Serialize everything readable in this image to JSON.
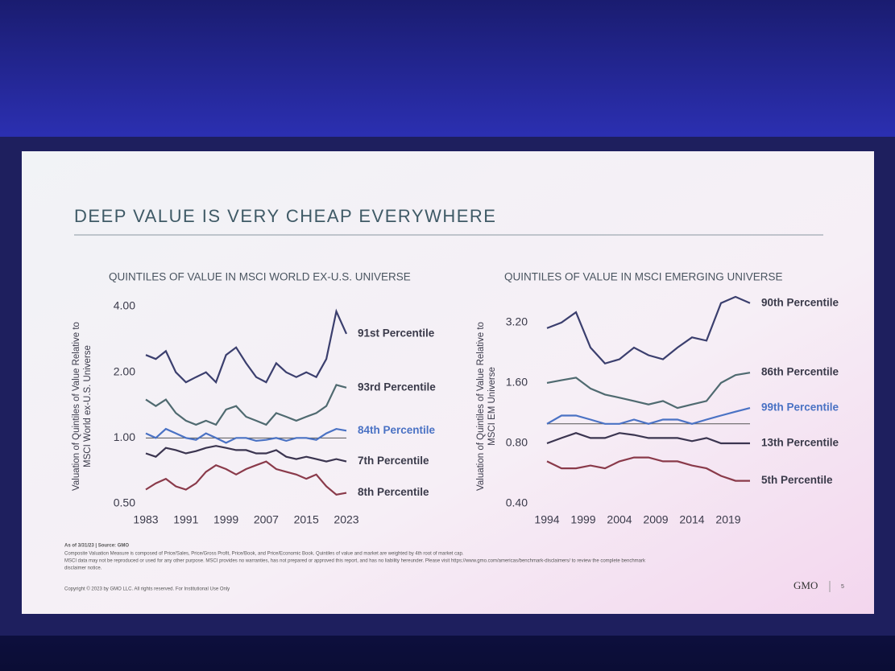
{
  "slide": {
    "title": "DEEP VALUE IS VERY CHEAP EVERYWHERE",
    "footnotes": [
      "As of 3/31/23 | Source: GMO",
      "Composite Valuation Measure is composed of Price/Sales, Price/Gross Profit, Price/Book, and Price/Economic Book. Quintiles of value and market are weighted by 4th root of market cap.",
      "MSCI data may not be reproduced or used for any other purpose. MSCI provides no warranties, has not prepared or approved this report, and has no liability hereunder. Please visit https://www.gmo.com/americas/benchmark-disclaimers/ to review the complete benchmark",
      "disclaimer notice."
    ],
    "copyright": "Copyright © 2023 by GMO LLC. All rights reserved. For Institutional Use Only",
    "logo": "GMO",
    "page": "5"
  },
  "chart_data": [
    {
      "type": "line",
      "title": "QUINTILES OF VALUE IN MSCI WORLD EX-U.S. UNIVERSE",
      "ylabel": [
        "Valuation of Quintiles of Value Relative to",
        "MSCI World ex-U.S. Universe"
      ],
      "log_y": true,
      "hline": 1,
      "x": [
        1983,
        1985,
        1987,
        1989,
        1991,
        1993,
        1995,
        1997,
        1999,
        2001,
        2003,
        2005,
        2007,
        2009,
        2011,
        2013,
        2015,
        2017,
        2019,
        2021,
        2023
      ],
      "xlim": [
        1983,
        2023
      ],
      "xticks": [
        1983,
        1991,
        1999,
        2007,
        2015,
        2023
      ],
      "ylim": [
        0.5,
        4.0
      ],
      "yticks": [
        {
          "value": 0.5,
          "label": "0.50"
        },
        {
          "value": 1,
          "label": "1.00"
        },
        {
          "value": 2,
          "label": "2.00"
        },
        {
          "value": 4,
          "label": "4.00"
        }
      ],
      "series": [
        {
          "name": "91st Percentile",
          "color": "#3b3f6e",
          "values": [
            2.4,
            2.3,
            2.5,
            2.0,
            1.8,
            1.9,
            2.0,
            1.8,
            2.4,
            2.6,
            2.2,
            1.9,
            1.8,
            2.2,
            2.0,
            1.9,
            2.0,
            1.9,
            2.3,
            3.8,
            3.0
          ]
        },
        {
          "name": "93rd Percentile",
          "color": "#4f6a70",
          "values": [
            1.5,
            1.4,
            1.5,
            1.3,
            1.2,
            1.15,
            1.2,
            1.15,
            1.35,
            1.4,
            1.25,
            1.2,
            1.15,
            1.3,
            1.25,
            1.2,
            1.25,
            1.3,
            1.4,
            1.75,
            1.7
          ]
        },
        {
          "name": "84th Percentile",
          "color": "#4a72c4",
          "values": [
            1.05,
            1.0,
            1.1,
            1.05,
            1.0,
            0.98,
            1.05,
            1.0,
            0.95,
            1.0,
            1.0,
            0.97,
            0.98,
            1.0,
            0.97,
            1.0,
            1.0,
            0.98,
            1.05,
            1.1,
            1.08
          ]
        },
        {
          "name": "7th Percentile",
          "color": "#3b3550",
          "values": [
            0.85,
            0.82,
            0.9,
            0.88,
            0.85,
            0.87,
            0.9,
            0.92,
            0.9,
            0.88,
            0.88,
            0.85,
            0.85,
            0.88,
            0.82,
            0.8,
            0.82,
            0.8,
            0.78,
            0.8,
            0.78
          ]
        },
        {
          "name": "8th Percentile",
          "color": "#8a3a4a",
          "values": [
            0.58,
            0.62,
            0.65,
            0.6,
            0.58,
            0.62,
            0.7,
            0.75,
            0.72,
            0.68,
            0.72,
            0.75,
            0.78,
            0.72,
            0.7,
            0.68,
            0.65,
            0.68,
            0.6,
            0.55,
            0.56
          ]
        }
      ]
    },
    {
      "type": "line",
      "title": "QUINTILES OF VALUE IN MSCI EMERGING UNIVERSE",
      "ylabel": [
        "Valuation of Quintiles of Value Relative to",
        "MSCI EM Universe"
      ],
      "log_y": true,
      "hline": 1,
      "x": [
        1994,
        1996,
        1998,
        2000,
        2002,
        2004,
        2006,
        2008,
        2010,
        2012,
        2014,
        2016,
        2018,
        2020,
        2022
      ],
      "xlim": [
        1994,
        2022
      ],
      "xticks": [
        1994,
        1999,
        2004,
        2009,
        2014,
        2019
      ],
      "ylim": [
        0.4,
        4.8
      ],
      "yticks": [
        {
          "value": 0.4,
          "label": "0.40"
        },
        {
          "value": 0.8,
          "label": "0.80"
        },
        {
          "value": 1.6,
          "label": "1.60"
        },
        {
          "value": 3.2,
          "label": "3.20"
        }
      ],
      "series": [
        {
          "name": "90th Percentile",
          "color": "#3b3f6e",
          "values": [
            3.0,
            3.2,
            3.6,
            2.4,
            2.0,
            2.1,
            2.4,
            2.2,
            2.1,
            2.4,
            2.7,
            2.6,
            4.0,
            4.3,
            4.0
          ]
        },
        {
          "name": "86th Percentile",
          "color": "#4f6a70",
          "values": [
            1.6,
            1.65,
            1.7,
            1.5,
            1.4,
            1.35,
            1.3,
            1.25,
            1.3,
            1.2,
            1.25,
            1.3,
            1.6,
            1.75,
            1.8
          ]
        },
        {
          "name": "99th Percentile",
          "color": "#4a72c4",
          "values": [
            1.0,
            1.1,
            1.1,
            1.05,
            1.0,
            1.0,
            1.05,
            1.0,
            1.05,
            1.05,
            1.0,
            1.05,
            1.1,
            1.15,
            1.2
          ]
        },
        {
          "name": "13th Percentile",
          "color": "#3b3550",
          "values": [
            0.8,
            0.85,
            0.9,
            0.85,
            0.85,
            0.9,
            0.88,
            0.85,
            0.85,
            0.85,
            0.82,
            0.85,
            0.8,
            0.8,
            0.8
          ]
        },
        {
          "name": "5th Percentile",
          "color": "#8a3a4a",
          "values": [
            0.65,
            0.6,
            0.6,
            0.62,
            0.6,
            0.65,
            0.68,
            0.68,
            0.65,
            0.65,
            0.62,
            0.6,
            0.55,
            0.52,
            0.52
          ]
        }
      ]
    }
  ]
}
